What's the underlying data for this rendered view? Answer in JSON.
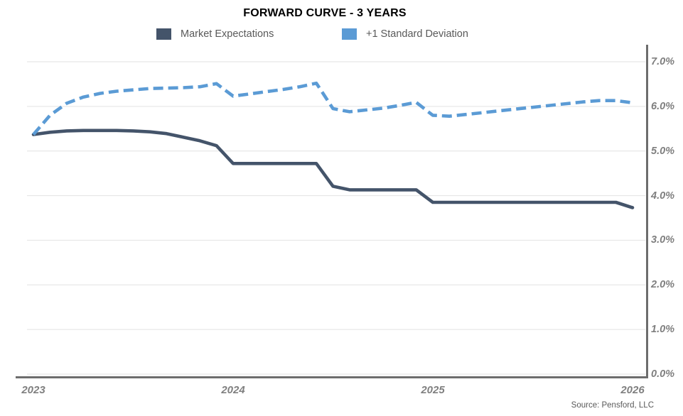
{
  "source": "Source: Pensford, LLC",
  "chart_data": {
    "type": "line",
    "title": "FORWARD CURVE - 3 YEARS",
    "x_start": "Jan 2023",
    "x_end": "Jan 2026",
    "x_interval": "monthly",
    "x_tick_labels": [
      "2023",
      "2024",
      "2025",
      "2026"
    ],
    "x_tick_every_points": 12,
    "y_tick_labels": [
      "0.0%",
      "1.0%",
      "2.0%",
      "3.0%",
      "4.0%",
      "5.0%",
      "6.0%",
      "7.0%"
    ],
    "ylim": [
      0,
      7
    ],
    "y_unit": "percent",
    "grid": "horizontal",
    "legend_position": "top",
    "axis_color": "#6d6d6d",
    "gridline_color": "#e2e2e2",
    "tick_label_color": "#7f7f7f",
    "series": [
      {
        "name": "Market Expectations",
        "color": "#44546A",
        "line_style": "solid",
        "values": [
          5.37,
          5.42,
          5.45,
          5.46,
          5.46,
          5.46,
          5.45,
          5.43,
          5.39,
          5.31,
          5.23,
          5.12,
          4.72,
          4.72,
          4.72,
          4.72,
          4.72,
          4.72,
          4.21,
          4.13,
          4.13,
          4.13,
          4.13,
          4.13,
          3.85,
          3.85,
          3.85,
          3.85,
          3.85,
          3.85,
          3.85,
          3.85,
          3.85,
          3.85,
          3.85,
          3.85,
          3.73
        ]
      },
      {
        "name": "+1 Standard Deviation",
        "color": "#5B9BD5",
        "line_style": "dashed",
        "values": [
          5.37,
          5.8,
          6.07,
          6.21,
          6.29,
          6.34,
          6.37,
          6.4,
          6.41,
          6.42,
          6.44,
          6.51,
          6.23,
          6.28,
          6.33,
          6.38,
          6.44,
          6.52,
          5.95,
          5.88,
          5.92,
          5.96,
          6.02,
          6.09,
          5.8,
          5.78,
          5.82,
          5.86,
          5.9,
          5.94,
          5.98,
          6.02,
          6.06,
          6.1,
          6.13,
          6.13,
          6.08
        ]
      }
    ]
  }
}
